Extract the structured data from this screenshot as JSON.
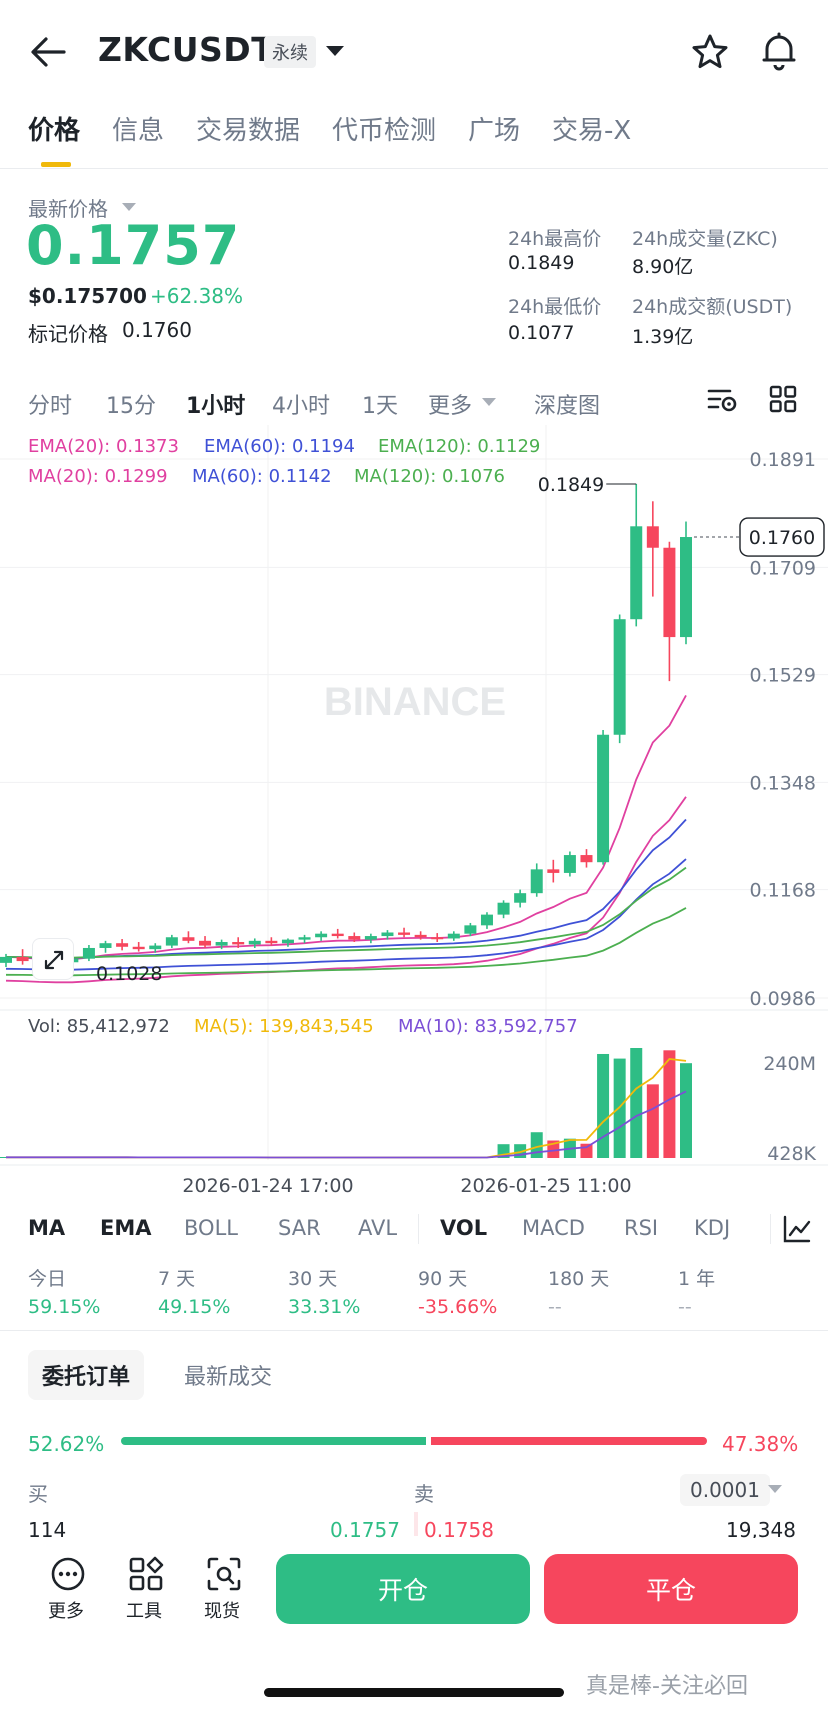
{
  "header": {
    "symbol": "ZKCUSDT",
    "badge": "永续",
    "icons": [
      "back-arrow-icon",
      "chevron-down-icon",
      "star-icon",
      "bell-icon"
    ]
  },
  "tabs": [
    "价格",
    "信息",
    "交易数据",
    "代币检测",
    "广场",
    "交易-X"
  ],
  "price": {
    "last_label": "最新价格",
    "last": "0.1757",
    "usd": "$0.175700",
    "change": "+62.38%",
    "mark_label": "标记价格",
    "mark": "0.1760"
  },
  "stats": {
    "high_label": "24h最高价",
    "high": "0.1849",
    "low_label": "24h最低价",
    "low": "0.1077",
    "vol_label": "24h成交量(ZKC)",
    "vol": "8.90亿",
    "amount_label": "24h成交额(USDT)",
    "amount": "1.39亿"
  },
  "intervals": [
    "分时",
    "15分",
    "1小时",
    "4小时",
    "1天",
    "更多",
    "深度图"
  ],
  "active_interval": "1小时",
  "indicators": {
    "ema20": "EMA(20): 0.1373",
    "ema60": "EMA(60): 0.1194",
    "ema120": "EMA(120): 0.1129",
    "ma20": "MA(20): 0.1299",
    "ma60": "MA(60): 0.1142",
    "ma120": "MA(120): 0.1076",
    "vol": "Vol: 85,412,972",
    "vol_ma5": "MA(5): 139,843,545",
    "vol_ma10": "MA(10): 83,592,757"
  },
  "chart_data": {
    "type": "candlestick",
    "watermark": "BINANCE",
    "price_axis": [
      "0.1891",
      "0.1709",
      "0.1529",
      "0.1348",
      "0.1168",
      "0.0986"
    ],
    "volume_axis": [
      "240M",
      "428K"
    ],
    "x_ticks": [
      "2026-01-24 17:00",
      "2026-01-25 11:00"
    ],
    "high_marker": "0.1849",
    "low_marker": "0.1028",
    "current_price_tag": "0.1760",
    "colors": {
      "up": "#2ebd85",
      "down": "#f6465d",
      "ema20": "#e040a0",
      "ema60": "#3f51d6",
      "ema120": "#4caf50",
      "vol_ma5": "#f0b90b",
      "vol_ma10": "#7b4fd6"
    },
    "candles": [
      [
        0.1045,
        0.106,
        0.1038,
        0.1055
      ],
      [
        0.1055,
        0.1068,
        0.1042,
        0.1048
      ],
      [
        0.1048,
        0.1055,
        0.1035,
        0.104
      ],
      [
        0.104,
        0.105,
        0.1028,
        0.1046
      ],
      [
        0.1046,
        0.1058,
        0.104,
        0.1052
      ],
      [
        0.1052,
        0.1075,
        0.1048,
        0.107
      ],
      [
        0.107,
        0.1082,
        0.1062,
        0.1078
      ],
      [
        0.1078,
        0.1085,
        0.1066,
        0.1072
      ],
      [
        0.1072,
        0.108,
        0.1064,
        0.1068
      ],
      [
        0.1068,
        0.1078,
        0.1062,
        0.1074
      ],
      [
        0.1074,
        0.1092,
        0.107,
        0.1088
      ],
      [
        0.1088,
        0.1098,
        0.1078,
        0.1082
      ],
      [
        0.1082,
        0.109,
        0.107,
        0.1074
      ],
      [
        0.1074,
        0.1084,
        0.1068,
        0.108
      ],
      [
        0.108,
        0.1088,
        0.107,
        0.1076
      ],
      [
        0.1076,
        0.1086,
        0.107,
        0.1082
      ],
      [
        0.1082,
        0.1088,
        0.1074,
        0.1078
      ],
      [
        0.1078,
        0.1086,
        0.1072,
        0.1084
      ],
      [
        0.1084,
        0.1092,
        0.1078,
        0.1088
      ],
      [
        0.1088,
        0.1098,
        0.1082,
        0.1094
      ],
      [
        0.1094,
        0.1102,
        0.1086,
        0.109
      ],
      [
        0.109,
        0.1096,
        0.108,
        0.1084
      ],
      [
        0.1084,
        0.1094,
        0.1078,
        0.109
      ],
      [
        0.109,
        0.11,
        0.1084,
        0.1096
      ],
      [
        0.1096,
        0.1104,
        0.1088,
        0.1092
      ],
      [
        0.1092,
        0.1098,
        0.1084,
        0.1088
      ],
      [
        0.1088,
        0.1095,
        0.108,
        0.1086
      ],
      [
        0.1086,
        0.1098,
        0.1082,
        0.1094
      ],
      [
        0.1094,
        0.1112,
        0.109,
        0.1108
      ],
      [
        0.1108,
        0.113,
        0.1102,
        0.1126
      ],
      [
        0.1126,
        0.115,
        0.112,
        0.1146
      ],
      [
        0.1146,
        0.1168,
        0.1138,
        0.1162
      ],
      [
        0.1162,
        0.1212,
        0.1156,
        0.1202
      ],
      [
        0.1202,
        0.1218,
        0.118,
        0.1196
      ],
      [
        0.1196,
        0.1232,
        0.119,
        0.1226
      ],
      [
        0.1226,
        0.1236,
        0.1205,
        0.1214
      ],
      [
        0.1214,
        0.1436,
        0.121,
        0.1428
      ],
      [
        0.1428,
        0.163,
        0.1414,
        0.1622
      ],
      [
        0.1622,
        0.1849,
        0.161,
        0.1778
      ],
      [
        0.1778,
        0.182,
        0.166,
        0.1742
      ],
      [
        0.1742,
        0.1752,
        0.1518,
        0.1592
      ],
      [
        0.1592,
        0.1786,
        0.158,
        0.176
      ]
    ]
  },
  "indicator_tabs": [
    "MA",
    "EMA",
    "BOLL",
    "SAR",
    "AVL",
    "VOL",
    "MACD",
    "RSI",
    "KDJ"
  ],
  "active_indicator_tabs": [
    "MA",
    "EMA",
    "VOL"
  ],
  "performance": [
    {
      "label": "今日",
      "value": "59.15%",
      "dir": "up"
    },
    {
      "label": "7 天",
      "value": "49.15%",
      "dir": "up"
    },
    {
      "label": "30 天",
      "value": "33.31%",
      "dir": "up"
    },
    {
      "label": "90 天",
      "value": "-35.66%",
      "dir": "down"
    },
    {
      "label": "180 天",
      "value": "--",
      "dir": "none"
    },
    {
      "label": "1 年",
      "value": "--",
      "dir": "none"
    }
  ],
  "orderbook": {
    "tab_orders": "委托订单",
    "tab_trades": "最新成交",
    "bid_pct": "52.62%",
    "ask_pct": "47.38%",
    "bid_ratio": 0.5262,
    "buy_label": "买",
    "sell_label": "卖",
    "precision": "0.0001",
    "bid_qty": "114",
    "bid_price": "0.1757",
    "ask_price": "0.1758",
    "ask_qty": "19,348"
  },
  "bottom": {
    "more": "更多",
    "tools": "工具",
    "spot": "现货",
    "open": "开仓",
    "close": "平仓",
    "watermark": "真是棒-关注必回"
  }
}
